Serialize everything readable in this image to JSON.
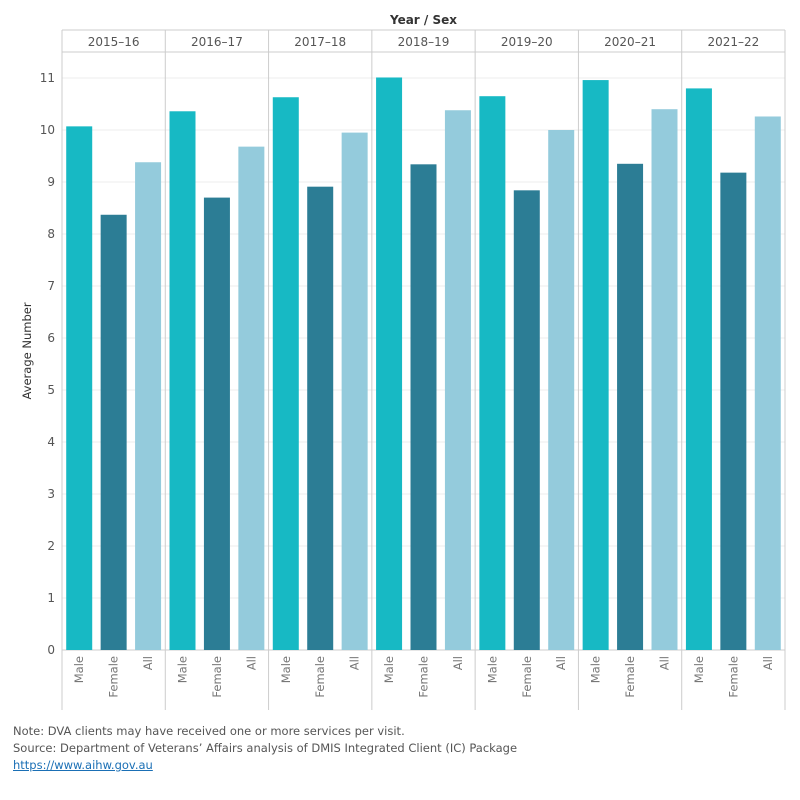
{
  "chart_data": {
    "type": "bar",
    "column_header": "Year / Sex",
    "ylabel": "Average Number",
    "ylim": [
      0,
      11.5
    ],
    "yticks": [
      0,
      1,
      2,
      3,
      4,
      5,
      6,
      7,
      8,
      9,
      10,
      11
    ],
    "grid": true,
    "sexes": [
      "Male",
      "Female",
      "All"
    ],
    "colors": {
      "Male": "#17b9c4",
      "Female": "#2c7d95",
      "All": "#94cbdc"
    },
    "years": [
      "2015–16",
      "2016–17",
      "2017–18",
      "2018–19",
      "2019–20",
      "2020–21",
      "2021–22"
    ],
    "series": [
      {
        "name": "Male",
        "values": [
          10.07,
          10.36,
          10.63,
          11.01,
          10.65,
          10.96,
          10.8
        ]
      },
      {
        "name": "Female",
        "values": [
          8.37,
          8.7,
          8.91,
          9.34,
          8.84,
          9.35,
          9.18
        ]
      },
      {
        "name": "All",
        "values": [
          9.38,
          9.68,
          9.95,
          10.38,
          10.0,
          10.4,
          10.26
        ]
      }
    ]
  },
  "notes": {
    "note": "Note: DVA clients may have received one or more services per visit.",
    "source": "Source: Department of Veterans’ Affairs analysis of DMIS Integrated Client (IC) Package",
    "link": "https://www.aihw.gov.au"
  }
}
